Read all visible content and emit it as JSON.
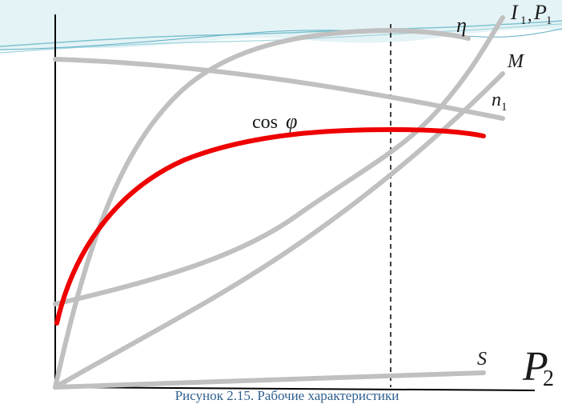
{
  "figure": {
    "caption": "Рисунок 2.15. Рабочие характеристики"
  },
  "labels": {
    "eta": "η",
    "i1": "I",
    "i1_sub": "1",
    "comma": ",",
    "p1": "P",
    "p1_sub": "1",
    "m": "M",
    "n1": "n",
    "n1_sub": "1",
    "cos": "cos",
    "phi": "φ",
    "s": "S",
    "p2": "P",
    "p2_sub": "2"
  },
  "colors": {
    "curve_gray": "#c0c0c0",
    "cos_phi_red": "#ee0000",
    "axis": "#000000",
    "caption": "#2f5f8f",
    "decor_teal": "#7fc3cf"
  }
}
